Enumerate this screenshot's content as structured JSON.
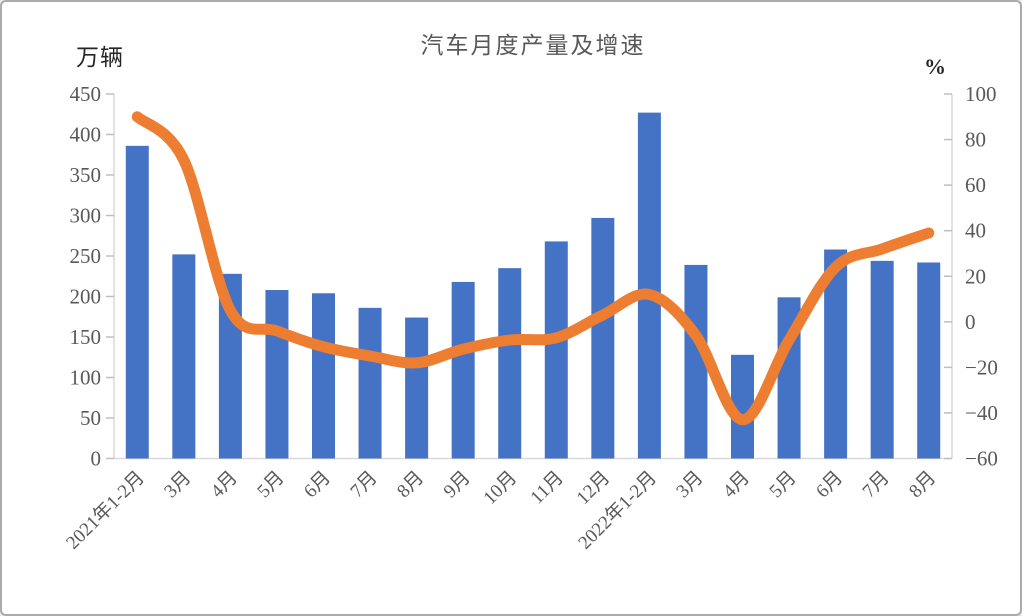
{
  "chart_data": {
    "type": "bar",
    "title": "汽车月度产量及增速",
    "categories": [
      "2021年1-2月",
      "3月",
      "4月",
      "5月",
      "6月",
      "7月",
      "8月",
      "9月",
      "10月",
      "11月",
      "12月",
      "2022年1-2月",
      "3月",
      "4月",
      "5月",
      "6月",
      "7月",
      "8月"
    ],
    "series": [
      {
        "name": "产量",
        "type": "bar",
        "axis": "left",
        "values": [
          386,
          252,
          228,
          208,
          204,
          186,
          174,
          218,
          235,
          268,
          297,
          427,
          239,
          128,
          199,
          258,
          244,
          242
        ]
      },
      {
        "name": "增速",
        "type": "line",
        "axis": "right",
        "values": [
          90,
          71,
          5,
          -4,
          -11,
          -15,
          -18,
          -12,
          -8,
          -7,
          3,
          12,
          -6,
          -43,
          -8,
          24,
          32,
          39
        ]
      }
    ],
    "left_axis": {
      "unit_label": "万辆",
      "min": 0,
      "max": 450,
      "step": 50,
      "tick_labels": [
        "450",
        "400",
        "350",
        "300",
        "250",
        "200",
        "150",
        "100",
        "50",
        "0"
      ]
    },
    "right_axis": {
      "unit_label": "%",
      "min": -60,
      "max": 100,
      "step": 20,
      "tick_labels": [
        "100",
        "80",
        "60",
        "40",
        "20",
        "0",
        "−20",
        "−40",
        "−60"
      ]
    },
    "grid": false,
    "legend_position": "none",
    "colors": {
      "bar": "#4472C4",
      "line": "#ED7D31",
      "axis_line": "#D9D9D9",
      "tick_mark": "#BFBFBF",
      "tick_text": "#595959",
      "title_text": "#595959"
    }
  }
}
